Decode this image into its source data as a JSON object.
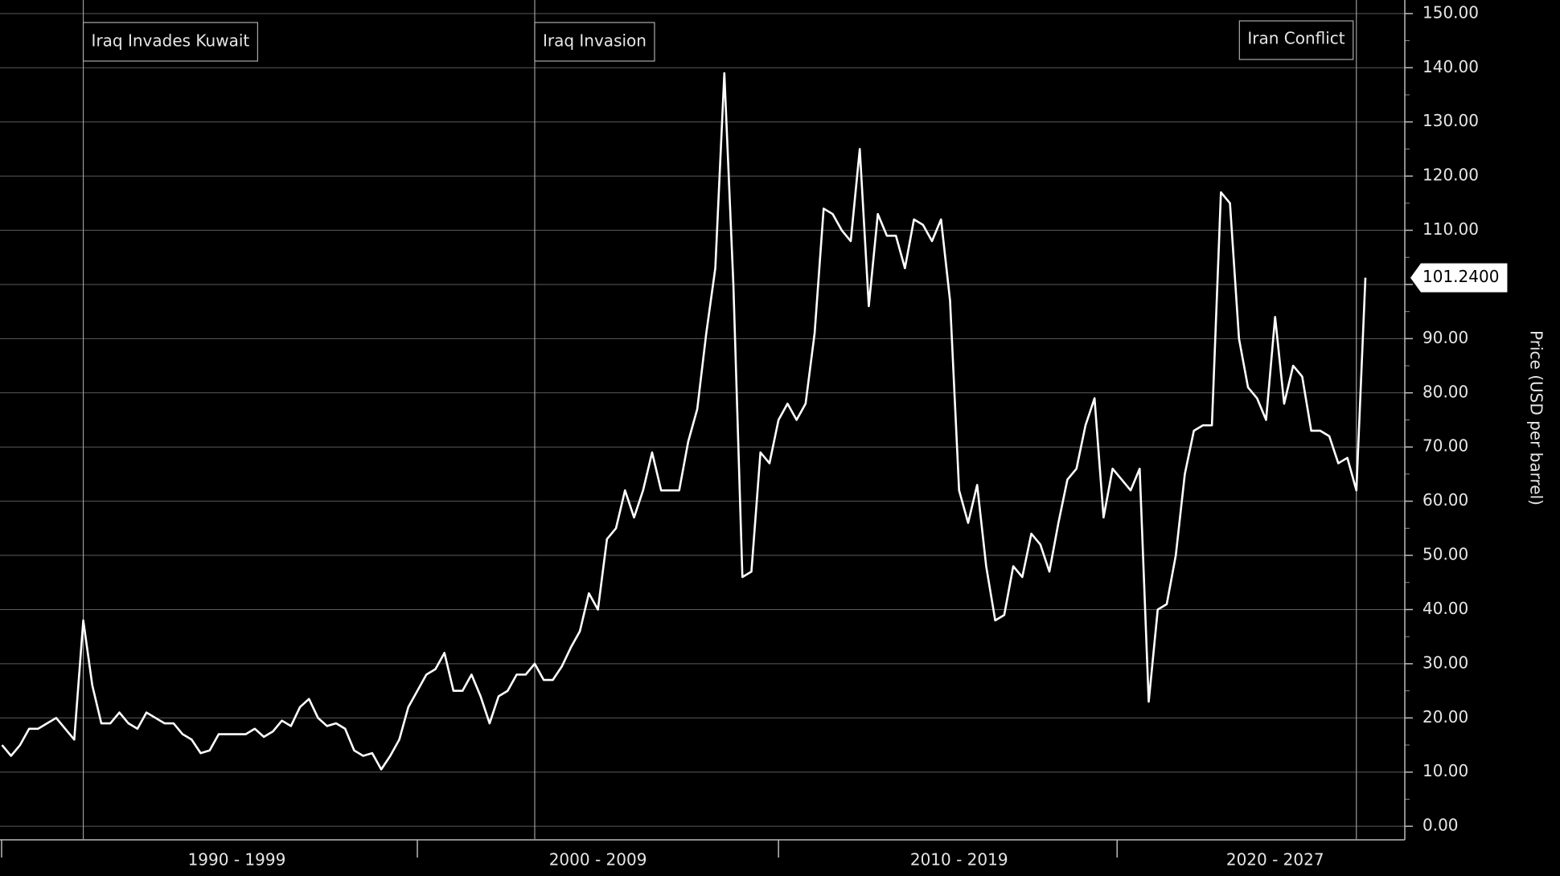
{
  "chart_data": {
    "type": "line",
    "y_label": "Price (USD per barrel)",
    "color": "#ffffff",
    "grid": true,
    "ylim": [
      -2.5,
      152.5
    ],
    "yticks": [
      {
        "value": 0,
        "label": "0.00"
      },
      {
        "value": 10,
        "label": "10.00"
      },
      {
        "value": 20,
        "label": "20.00"
      },
      {
        "value": 30,
        "label": "30.00"
      },
      {
        "value": 40,
        "label": "40.00"
      },
      {
        "value": 50,
        "label": "50.00"
      },
      {
        "value": 60,
        "label": "60.00"
      },
      {
        "value": 70,
        "label": "70.00"
      },
      {
        "value": 80,
        "label": "80.00"
      },
      {
        "value": 90,
        "label": "90.00"
      },
      {
        "value": 100,
        "label": "100.00"
      },
      {
        "value": 110,
        "label": "110.00"
      },
      {
        "value": 120,
        "label": "120.00"
      },
      {
        "value": 130,
        "label": "130.00"
      },
      {
        "value": 140,
        "label": "140.00"
      },
      {
        "value": 150,
        "label": "150.00"
      }
    ],
    "categories": [
      null,
      null,
      null,
      null,
      null,
      null,
      null,
      null,
      null,
      null,
      null,
      null,
      null,
      null,
      null,
      null,
      null,
      null,
      null,
      null,
      null,
      null,
      null,
      null,
      null,
      null,
      "1990 - 1999",
      null,
      null,
      null,
      null,
      null,
      null,
      null,
      null,
      null,
      null,
      null,
      null,
      null,
      null,
      null,
      null,
      null,
      null,
      null,
      null,
      null,
      null,
      null,
      null,
      null,
      null,
      null,
      null,
      null,
      null,
      null,
      null,
      null,
      null,
      null,
      null,
      null,
      null,
      null,
      "2000 - 2009",
      null,
      null,
      null,
      null,
      null,
      null,
      null,
      null,
      null,
      null,
      null,
      null,
      null,
      null,
      null,
      null,
      null,
      null,
      null,
      null,
      null,
      null,
      null,
      null,
      null,
      null,
      null,
      null,
      null,
      null,
      null,
      null,
      null,
      null,
      null,
      null,
      null,
      null,
      null,
      "2010 - 2019",
      null,
      null,
      null,
      null,
      null,
      null,
      null,
      null,
      null,
      null,
      null,
      null,
      null,
      null,
      null,
      null,
      null,
      null,
      null,
      null,
      null,
      null,
      null,
      null,
      null,
      null,
      null,
      null,
      null,
      null,
      null,
      null,
      null,
      null,
      "2020 - 2027",
      null,
      null,
      null,
      null,
      null,
      null,
      null,
      null,
      null,
      null
    ],
    "events": [
      null,
      null,
      null,
      null,
      null,
      null,
      null,
      null,
      null,
      "Iraq Invades Kuwait",
      null,
      null,
      null,
      null,
      null,
      null,
      null,
      null,
      null,
      null,
      null,
      null,
      null,
      null,
      null,
      null,
      null,
      null,
      null,
      null,
      null,
      null,
      null,
      null,
      null,
      null,
      null,
      null,
      null,
      null,
      null,
      null,
      null,
      null,
      null,
      null,
      null,
      null,
      null,
      null,
      null,
      null,
      null,
      null,
      null,
      null,
      null,
      null,
      null,
      "Iraq Invasion",
      null,
      null,
      null,
      null,
      null,
      null,
      null,
      null,
      null,
      null,
      null,
      null,
      null,
      null,
      null,
      null,
      null,
      null,
      null,
      null,
      null,
      null,
      null,
      null,
      null,
      null,
      null,
      null,
      null,
      null,
      null,
      null,
      null,
      null,
      null,
      null,
      null,
      null,
      null,
      null,
      null,
      null,
      null,
      null,
      null,
      null,
      null,
      null,
      null,
      null,
      null,
      null,
      null,
      null,
      null,
      null,
      null,
      null,
      null,
      null,
      null,
      null,
      null,
      null,
      null,
      null,
      null,
      null,
      null,
      null,
      null,
      null,
      null,
      null,
      null,
      null,
      null,
      null,
      null,
      null,
      null,
      null,
      null,
      null,
      null,
      null,
      null,
      null,
      null,
      null,
      "Iran Conflict"
    ],
    "values": [
      15,
      13,
      15,
      18,
      18,
      19,
      20,
      18,
      16,
      38,
      26,
      19,
      19,
      21,
      19,
      18,
      21,
      20,
      19,
      19,
      17,
      16,
      13.5,
      14,
      17,
      17,
      17,
      17,
      18,
      16.5,
      17.5,
      19.5,
      18.5,
      22,
      23.5,
      20,
      18.5,
      19,
      18,
      14,
      13,
      13.5,
      10.5,
      13,
      16,
      22,
      25,
      28,
      29,
      32,
      25,
      25,
      28,
      24,
      19,
      24,
      25,
      28,
      28,
      30,
      27,
      27,
      29.5,
      33,
      36,
      43,
      40,
      53,
      55,
      62,
      57,
      62,
      69,
      62,
      62,
      62,
      71,
      77,
      91,
      103,
      139,
      100,
      46,
      47,
      69,
      67,
      75,
      78,
      75,
      78,
      91,
      114,
      113,
      110,
      108,
      125,
      96,
      113,
      109,
      109,
      103,
      112,
      111,
      108,
      112,
      97,
      62,
      56,
      63,
      48,
      38,
      39,
      48,
      46,
      54,
      52,
      47,
      56,
      64,
      66,
      74,
      79,
      57,
      66,
      64,
      62,
      66,
      23,
      40,
      41,
      50,
      65,
      73,
      74,
      74,
      117,
      115,
      90,
      81,
      79,
      75,
      94,
      78,
      85,
      83,
      73,
      73,
      72,
      67,
      68,
      62,
      101.24
    ],
    "value_labels": [
      null,
      null,
      null,
      null,
      null,
      null,
      null,
      null,
      null,
      null,
      null,
      null,
      null,
      null,
      null,
      null,
      null,
      null,
      null,
      null,
      null,
      null,
      null,
      null,
      null,
      null,
      null,
      null,
      null,
      null,
      null,
      null,
      null,
      null,
      null,
      null,
      null,
      null,
      null,
      null,
      null,
      null,
      null,
      null,
      null,
      null,
      null,
      null,
      null,
      null,
      null,
      null,
      null,
      null,
      null,
      null,
      null,
      null,
      null,
      null,
      null,
      null,
      null,
      null,
      null,
      null,
      null,
      null,
      null,
      null,
      null,
      null,
      null,
      null,
      null,
      null,
      null,
      null,
      null,
      null,
      null,
      null,
      null,
      null,
      null,
      null,
      null,
      null,
      null,
      null,
      null,
      null,
      null,
      null,
      null,
      null,
      null,
      null,
      null,
      null,
      null,
      null,
      null,
      null,
      null,
      null,
      null,
      null,
      null,
      null,
      null,
      null,
      null,
      null,
      null,
      null,
      null,
      null,
      null,
      null,
      null,
      null,
      null,
      null,
      null,
      null,
      null,
      null,
      null,
      null,
      null,
      null,
      null,
      null,
      null,
      null,
      null,
      null,
      null,
      null,
      null,
      null,
      null,
      null,
      null,
      null,
      null,
      null,
      null,
      null,
      null,
      "101.2400"
    ]
  }
}
